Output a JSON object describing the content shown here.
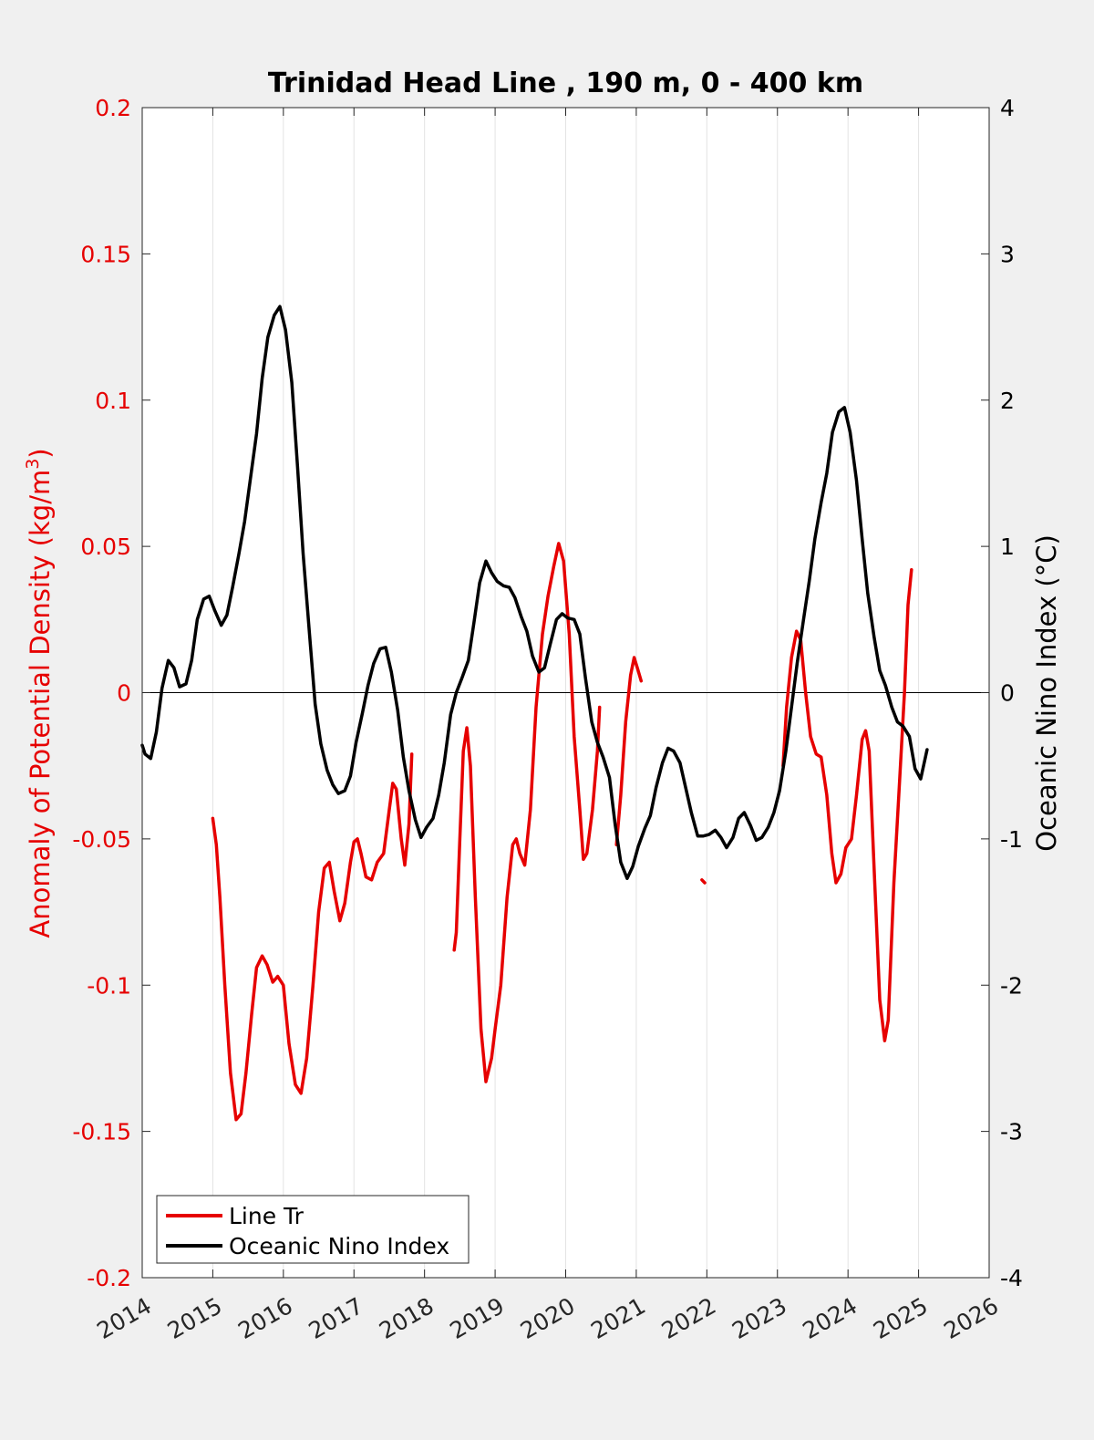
{
  "chart_data": {
    "type": "line",
    "title": "Trinidad Head Line , 190 m, 0 - 400 km",
    "xlabel": "",
    "ylabel_left": "Anomaly of Potential Density (kg/m",
    "ylabel_left_sup": "3",
    "ylabel_left_tail": ")",
    "ylabel_right": "Oceanic Nino Index (°C)",
    "xlim": [
      2014,
      2026
    ],
    "ylim_left": [
      -0.2,
      0.2
    ],
    "ylim_right": [
      -4,
      4
    ],
    "x_ticks": [
      "2014",
      "2015",
      "2016",
      "2017",
      "2018",
      "2019",
      "2020",
      "2021",
      "2022",
      "2023",
      "2024",
      "2025",
      "2026"
    ],
    "y_left_ticks": [
      "0.2",
      "0.15",
      "0.1",
      "0.05",
      "0",
      "-0.05",
      "-0.1",
      "-0.15",
      "-0.2"
    ],
    "y_right_ticks": [
      "4",
      "3",
      "2",
      "1",
      "0",
      "-1",
      "-2",
      "-3",
      "-4"
    ],
    "grid": "vertical",
    "legend_position": "bottom-left",
    "colors": {
      "line_tr": "#e60000",
      "oni": "#000000",
      "left_axis": "#e60000",
      "right_axis": "#000000"
    },
    "series": [
      {
        "name": "Line Tr",
        "axis": "left",
        "segments": [
          [
            [
              2015.0,
              -0.043
            ],
            [
              2015.05,
              -0.052
            ],
            [
              2015.1,
              -0.07
            ],
            [
              2015.17,
              -0.1
            ],
            [
              2015.25,
              -0.13
            ],
            [
              2015.33,
              -0.146
            ],
            [
              2015.4,
              -0.144
            ],
            [
              2015.47,
              -0.13
            ],
            [
              2015.55,
              -0.11
            ],
            [
              2015.62,
              -0.094
            ],
            [
              2015.7,
              -0.09
            ],
            [
              2015.77,
              -0.093
            ],
            [
              2015.85,
              -0.099
            ],
            [
              2015.92,
              -0.097
            ],
            [
              2016.0,
              -0.1
            ],
            [
              2016.08,
              -0.12
            ],
            [
              2016.17,
              -0.134
            ],
            [
              2016.25,
              -0.137
            ],
            [
              2016.33,
              -0.125
            ],
            [
              2016.42,
              -0.1
            ],
            [
              2016.5,
              -0.075
            ],
            [
              2016.58,
              -0.06
            ],
            [
              2016.65,
              -0.058
            ],
            [
              2016.72,
              -0.068
            ],
            [
              2016.8,
              -0.078
            ],
            [
              2016.87,
              -0.072
            ],
            [
              2016.95,
              -0.058
            ],
            [
              2017.0,
              -0.051
            ],
            [
              2017.05,
              -0.05
            ],
            [
              2017.1,
              -0.055
            ],
            [
              2017.17,
              -0.063
            ],
            [
              2017.25,
              -0.064
            ],
            [
              2017.33,
              -0.058
            ],
            [
              2017.42,
              -0.055
            ],
            [
              2017.5,
              -0.04
            ],
            [
              2017.55,
              -0.031
            ],
            [
              2017.6,
              -0.033
            ],
            [
              2017.67,
              -0.05
            ],
            [
              2017.72,
              -0.059
            ],
            [
              2017.78,
              -0.045
            ],
            [
              2017.82,
              -0.021
            ]
          ],
          [
            [
              2018.42,
              -0.088
            ],
            [
              2018.45,
              -0.082
            ],
            [
              2018.5,
              -0.05
            ],
            [
              2018.55,
              -0.02
            ],
            [
              2018.6,
              -0.012
            ],
            [
              2018.65,
              -0.025
            ],
            [
              2018.72,
              -0.07
            ],
            [
              2018.8,
              -0.115
            ],
            [
              2018.87,
              -0.133
            ],
            [
              2018.95,
              -0.125
            ],
            [
              2019.0,
              -0.115
            ],
            [
              2019.08,
              -0.1
            ],
            [
              2019.17,
              -0.07
            ],
            [
              2019.25,
              -0.052
            ],
            [
              2019.3,
              -0.05
            ],
            [
              2019.35,
              -0.055
            ],
            [
              2019.42,
              -0.059
            ],
            [
              2019.5,
              -0.04
            ],
            [
              2019.58,
              -0.005
            ],
            [
              2019.67,
              0.02
            ],
            [
              2019.75,
              0.033
            ],
            [
              2019.83,
              0.043
            ],
            [
              2019.9,
              0.051
            ],
            [
              2019.97,
              0.045
            ],
            [
              2020.05,
              0.02
            ],
            [
              2020.12,
              -0.015
            ],
            [
              2020.2,
              -0.04
            ],
            [
              2020.25,
              -0.057
            ],
            [
              2020.3,
              -0.055
            ],
            [
              2020.38,
              -0.04
            ],
            [
              2020.45,
              -0.02
            ],
            [
              2020.48,
              -0.005
            ]
          ],
          [
            [
              2020.72,
              -0.052
            ],
            [
              2020.78,
              -0.035
            ],
            [
              2020.85,
              -0.01
            ],
            [
              2020.92,
              0.006
            ],
            [
              2020.97,
              0.012
            ],
            [
              2021.02,
              0.008
            ],
            [
              2021.07,
              0.004
            ]
          ],
          [
            [
              2021.93,
              -0.064
            ],
            [
              2021.97,
              -0.065
            ]
          ],
          [
            [
              2023.08,
              -0.025
            ],
            [
              2023.13,
              -0.005
            ],
            [
              2023.2,
              0.012
            ],
            [
              2023.27,
              0.021
            ],
            [
              2023.33,
              0.018
            ],
            [
              2023.4,
              0.0
            ],
            [
              2023.47,
              -0.015
            ],
            [
              2023.55,
              -0.021
            ],
            [
              2023.62,
              -0.022
            ],
            [
              2023.7,
              -0.035
            ],
            [
              2023.77,
              -0.055
            ],
            [
              2023.83,
              -0.065
            ],
            [
              2023.9,
              -0.062
            ],
            [
              2023.97,
              -0.053
            ],
            [
              2024.05,
              -0.05
            ],
            [
              2024.12,
              -0.035
            ],
            [
              2024.2,
              -0.016
            ],
            [
              2024.25,
              -0.013
            ],
            [
              2024.3,
              -0.02
            ],
            [
              2024.37,
              -0.06
            ],
            [
              2024.45,
              -0.105
            ],
            [
              2024.52,
              -0.119
            ],
            [
              2024.57,
              -0.112
            ],
            [
              2024.65,
              -0.065
            ],
            [
              2024.72,
              -0.035
            ],
            [
              2024.8,
              0.0
            ],
            [
              2024.85,
              0.03
            ],
            [
              2024.9,
              0.042
            ]
          ]
        ]
      },
      {
        "name": "Oceanic Nino Index",
        "axis": "right",
        "segments": [
          [
            [
              2014.0,
              -0.36
            ],
            [
              2014.04,
              -0.42
            ],
            [
              2014.12,
              -0.45
            ],
            [
              2014.2,
              -0.27
            ],
            [
              2014.28,
              0.03
            ],
            [
              2014.37,
              0.22
            ],
            [
              2014.45,
              0.17
            ],
            [
              2014.53,
              0.04
            ],
            [
              2014.62,
              0.06
            ],
            [
              2014.7,
              0.22
            ],
            [
              2014.78,
              0.5
            ],
            [
              2014.87,
              0.64
            ],
            [
              2014.95,
              0.66
            ],
            [
              2015.03,
              0.56
            ],
            [
              2015.12,
              0.46
            ],
            [
              2015.2,
              0.53
            ],
            [
              2015.28,
              0.72
            ],
            [
              2015.37,
              0.95
            ],
            [
              2015.45,
              1.17
            ],
            [
              2015.53,
              1.45
            ],
            [
              2015.62,
              1.77
            ],
            [
              2015.7,
              2.15
            ],
            [
              2015.78,
              2.43
            ],
            [
              2015.87,
              2.58
            ],
            [
              2015.95,
              2.64
            ],
            [
              2016.03,
              2.48
            ],
            [
              2016.12,
              2.12
            ],
            [
              2016.2,
              1.55
            ],
            [
              2016.28,
              0.95
            ],
            [
              2016.37,
              0.4
            ],
            [
              2016.45,
              -0.08
            ],
            [
              2016.53,
              -0.35
            ],
            [
              2016.62,
              -0.53
            ],
            [
              2016.7,
              -0.63
            ],
            [
              2016.78,
              -0.69
            ],
            [
              2016.87,
              -0.67
            ],
            [
              2016.95,
              -0.57
            ],
            [
              2017.03,
              -0.34
            ],
            [
              2017.12,
              -0.14
            ],
            [
              2017.2,
              0.05
            ],
            [
              2017.28,
              0.2
            ],
            [
              2017.37,
              0.3
            ],
            [
              2017.45,
              0.31
            ],
            [
              2017.53,
              0.14
            ],
            [
              2017.62,
              -0.12
            ],
            [
              2017.7,
              -0.44
            ],
            [
              2017.78,
              -0.67
            ],
            [
              2017.87,
              -0.87
            ],
            [
              2017.95,
              -0.99
            ],
            [
              2018.03,
              -0.92
            ],
            [
              2018.12,
              -0.86
            ],
            [
              2018.2,
              -0.7
            ],
            [
              2018.28,
              -0.48
            ],
            [
              2018.37,
              -0.15
            ],
            [
              2018.45,
              0.0
            ],
            [
              2018.53,
              0.1
            ],
            [
              2018.62,
              0.22
            ],
            [
              2018.7,
              0.48
            ],
            [
              2018.78,
              0.75
            ],
            [
              2018.87,
              0.9
            ],
            [
              2018.95,
              0.82
            ],
            [
              2019.03,
              0.76
            ],
            [
              2019.12,
              0.73
            ],
            [
              2019.2,
              0.72
            ],
            [
              2019.28,
              0.65
            ],
            [
              2019.37,
              0.52
            ],
            [
              2019.45,
              0.42
            ],
            [
              2019.53,
              0.25
            ],
            [
              2019.62,
              0.14
            ],
            [
              2019.7,
              0.17
            ],
            [
              2019.78,
              0.33
            ],
            [
              2019.87,
              0.5
            ],
            [
              2019.95,
              0.54
            ],
            [
              2020.03,
              0.51
            ],
            [
              2020.12,
              0.5
            ],
            [
              2020.2,
              0.4
            ],
            [
              2020.28,
              0.1
            ],
            [
              2020.37,
              -0.2
            ],
            [
              2020.45,
              -0.34
            ],
            [
              2020.53,
              -0.44
            ],
            [
              2020.62,
              -0.58
            ],
            [
              2020.7,
              -0.9
            ],
            [
              2020.78,
              -1.16
            ],
            [
              2020.87,
              -1.27
            ],
            [
              2020.95,
              -1.19
            ],
            [
              2021.03,
              -1.05
            ],
            [
              2021.12,
              -0.93
            ],
            [
              2021.2,
              -0.84
            ],
            [
              2021.28,
              -0.65
            ],
            [
              2021.37,
              -0.48
            ],
            [
              2021.45,
              -0.38
            ],
            [
              2021.53,
              -0.4
            ],
            [
              2021.62,
              -0.48
            ],
            [
              2021.7,
              -0.65
            ],
            [
              2021.78,
              -0.82
            ],
            [
              2021.87,
              -0.98
            ],
            [
              2021.95,
              -0.98
            ],
            [
              2022.03,
              -0.97
            ],
            [
              2022.12,
              -0.94
            ],
            [
              2022.2,
              -0.99
            ],
            [
              2022.28,
              -1.06
            ],
            [
              2022.37,
              -0.99
            ],
            [
              2022.45,
              -0.86
            ],
            [
              2022.53,
              -0.82
            ],
            [
              2022.62,
              -0.91
            ],
            [
              2022.7,
              -1.01
            ],
            [
              2022.78,
              -0.99
            ],
            [
              2022.87,
              -0.92
            ],
            [
              2022.95,
              -0.82
            ],
            [
              2023.03,
              -0.67
            ],
            [
              2023.12,
              -0.4
            ],
            [
              2023.2,
              -0.1
            ],
            [
              2023.28,
              0.2
            ],
            [
              2023.37,
              0.5
            ],
            [
              2023.45,
              0.76
            ],
            [
              2023.53,
              1.05
            ],
            [
              2023.62,
              1.3
            ],
            [
              2023.7,
              1.5
            ],
            [
              2023.78,
              1.78
            ],
            [
              2023.87,
              1.92
            ],
            [
              2023.95,
              1.95
            ],
            [
              2024.03,
              1.78
            ],
            [
              2024.12,
              1.45
            ],
            [
              2024.2,
              1.05
            ],
            [
              2024.28,
              0.68
            ],
            [
              2024.37,
              0.38
            ],
            [
              2024.45,
              0.15
            ],
            [
              2024.53,
              0.05
            ],
            [
              2024.62,
              -0.1
            ],
            [
              2024.7,
              -0.2
            ],
            [
              2024.78,
              -0.23
            ],
            [
              2024.87,
              -0.3
            ],
            [
              2024.95,
              -0.52
            ],
            [
              2025.03,
              -0.59
            ],
            [
              2025.12,
              -0.39
            ]
          ]
        ]
      }
    ]
  }
}
